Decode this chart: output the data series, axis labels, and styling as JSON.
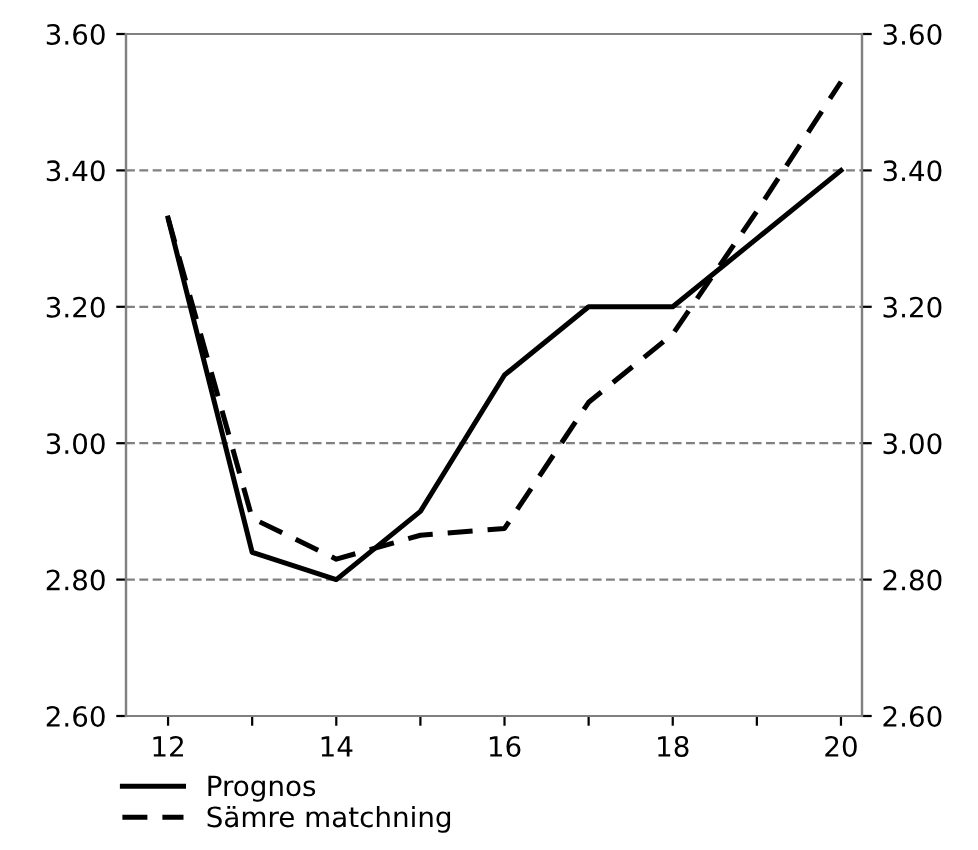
{
  "chart_data": {
    "type": "line",
    "x": [
      12,
      13,
      14,
      15,
      16,
      17,
      18,
      19,
      20
    ],
    "series": [
      {
        "name": "Prognos",
        "color": "#000000",
        "line_style": "solid",
        "values": [
          3.33,
          2.84,
          2.8,
          2.9,
          3.1,
          3.2,
          3.2,
          3.3,
          3.4
        ]
      },
      {
        "name": "Sämre matchning",
        "color": "#000000",
        "line_style": "dashed",
        "values": [
          3.33,
          2.89,
          2.83,
          2.865,
          2.875,
          3.06,
          3.16,
          3.34,
          3.53
        ]
      }
    ],
    "xlim": [
      11.5,
      20.25
    ],
    "xticks": [
      12,
      {
        "value": 13,
        "label": null
      },
      14,
      {
        "value": 15,
        "label": null
      },
      16,
      {
        "value": 17,
        "label": null
      },
      18,
      {
        "value": 19,
        "label": null
      },
      20
    ],
    "ylim": [
      2.6,
      3.6
    ],
    "yticks": [
      {
        "value": 2.6,
        "label": "2.60"
      },
      {
        "value": 2.8,
        "label": "2.80"
      },
      {
        "value": 3.0,
        "label": "3.00"
      },
      {
        "value": 3.2,
        "label": "3.20"
      },
      {
        "value": 3.4,
        "label": "3.40"
      },
      {
        "value": 3.6,
        "label": "3.60"
      }
    ],
    "y2lim": [
      2.6,
      3.6
    ],
    "y2ticks": [
      {
        "value": 2.6,
        "label": "2.60"
      },
      {
        "value": 2.8,
        "label": "2.80"
      },
      {
        "value": 3.0,
        "label": "3.00"
      },
      {
        "value": 3.2,
        "label": "3.20"
      },
      {
        "value": 3.4,
        "label": "3.40"
      },
      {
        "value": 3.6,
        "label": "3.60"
      }
    ],
    "grid": "y",
    "legend": "bottom"
  }
}
